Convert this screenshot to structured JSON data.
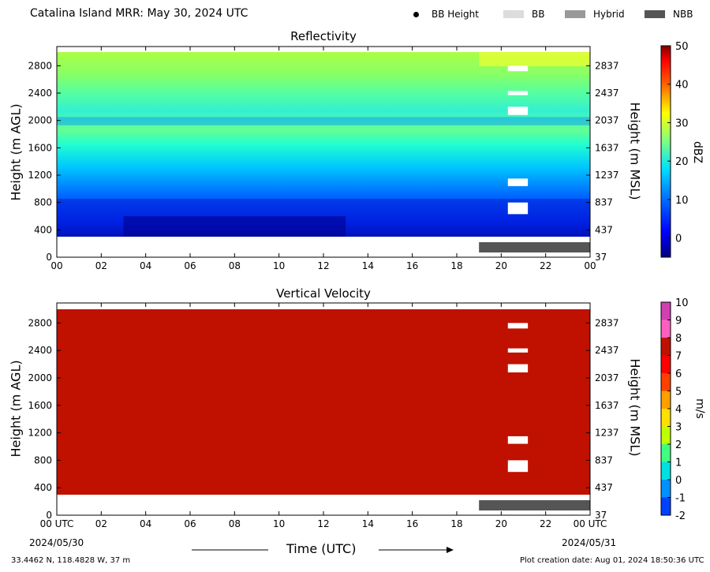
{
  "header": {
    "title": "Catalina Island MRR:  May 30, 2024 UTC",
    "legend": [
      {
        "label": "BB Height",
        "style": "dot",
        "color": "#000000"
      },
      {
        "label": "BB",
        "style": "swatch",
        "color": "#dcdcdc"
      },
      {
        "label": "Hybrid",
        "style": "swatch",
        "color": "#999999"
      },
      {
        "label": "NBB",
        "style": "swatch",
        "color": "#555555"
      }
    ]
  },
  "x_axis": {
    "ticks": [
      "00",
      "02",
      "04",
      "06",
      "08",
      "10",
      "12",
      "14",
      "16",
      "18",
      "20",
      "22",
      "00"
    ],
    "ticks_bottom": [
      "00 UTC",
      "02",
      "04",
      "06",
      "08",
      "10",
      "12",
      "14",
      "16",
      "18",
      "20",
      "22",
      "00 UTC"
    ],
    "start_date": "2024/05/30",
    "end_date": "2024/05/31",
    "label": "Time (UTC)"
  },
  "chart_data": [
    {
      "type": "heatmap",
      "title": "Reflectivity",
      "ylabel": "Height (m AGL)",
      "ylabel_right": "Height (m MSL)",
      "xlim": [
        0,
        24
      ],
      "ylim": [
        0,
        3000
      ],
      "yticks": [
        0,
        400,
        800,
        1200,
        1600,
        2000,
        2400,
        2800
      ],
      "yticks_right": [
        "37",
        "437",
        "837",
        "1237",
        "1637",
        "2037",
        "2437",
        "2837"
      ],
      "colorbar": {
        "label": "dBZ",
        "min": -5,
        "max": 50,
        "ticks": [
          0,
          10,
          20,
          30,
          40,
          50
        ]
      },
      "bb_type_bar": {
        "type": "NBB",
        "start_hour": 19,
        "end_hour": 24
      }
    },
    {
      "type": "heatmap",
      "title": "Vertical Velocity",
      "ylabel": "Height (m AGL)",
      "ylabel_right": "Height (m MSL)",
      "xlim": [
        0,
        24
      ],
      "ylim": [
        0,
        3000
      ],
      "yticks": [
        0,
        400,
        800,
        1200,
        1600,
        2000,
        2400,
        2800
      ],
      "yticks_right": [
        "37",
        "437",
        "837",
        "1237",
        "1637",
        "2037",
        "2437",
        "2837"
      ],
      "colorbar": {
        "label": "m/s",
        "min": -2,
        "max": 10,
        "ticks": [
          -2,
          -1,
          0,
          1,
          2,
          3,
          4,
          5,
          6,
          7,
          8,
          9,
          10
        ]
      },
      "bb_type_bar": {
        "type": "NBB",
        "start_hour": 19,
        "end_hour": 24
      }
    }
  ],
  "footer": {
    "location": "33.4462 N, 118.4828 W, 37 m",
    "creation": "Plot creation date: Aug 01, 2024 18:50:36 UTC"
  }
}
